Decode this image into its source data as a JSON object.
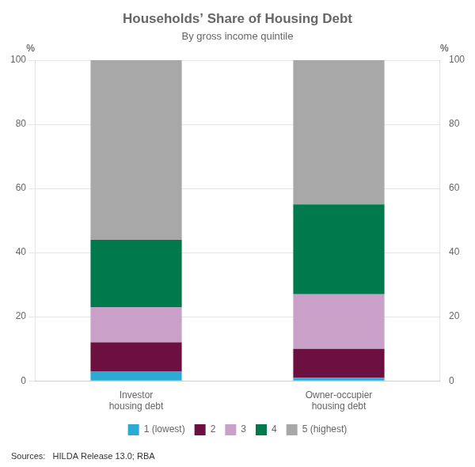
{
  "chart_data": {
    "type": "bar",
    "title": "Households’ Share of Housing Debt",
    "subtitle": "By gross income quintile",
    "categories": [
      "Investor\nhousing debt",
      "Owner-occupier\nhousing debt"
    ],
    "series": [
      {
        "name": "1 (lowest)",
        "color": "#29ABD4",
        "values": [
          3,
          1
        ]
      },
      {
        "name": "2",
        "color": "#6B1040",
        "values": [
          9,
          9
        ]
      },
      {
        "name": "3",
        "color": "#C9A0C8",
        "values": [
          11,
          17
        ]
      },
      {
        "name": "4",
        "color": "#007A4D",
        "values": [
          21,
          28
        ]
      },
      {
        "name": "5 (highest)",
        "color": "#A8A8A8",
        "values": [
          56,
          45
        ]
      }
    ],
    "stacked": true,
    "ylim": [
      0,
      100
    ],
    "yticks": [
      0,
      20,
      40,
      60,
      80,
      100
    ],
    "ylabel": "%",
    "y2lim": [
      0,
      100
    ],
    "y2ticks": [
      0,
      20,
      40,
      60,
      80,
      100
    ],
    "y2label": "%",
    "grid": true,
    "legend": "bottom",
    "source": "Sources:   HILDA Release 13.0; RBA"
  }
}
